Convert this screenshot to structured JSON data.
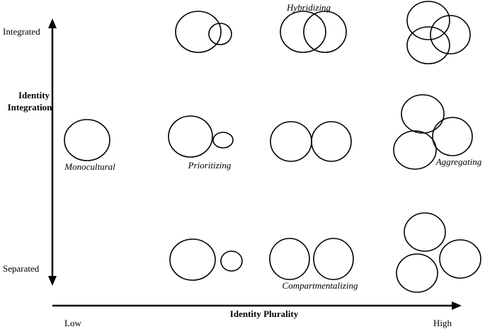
{
  "y_axis": {
    "title_line1": "Identity",
    "title_line2": "Integration",
    "top_label": "Integrated",
    "bottom_label": "Separated"
  },
  "x_axis": {
    "title": "Identity Plurality",
    "left_label": "Low",
    "right_label": "High"
  },
  "categories": {
    "monocultural": "Monocultural",
    "prioritizing": "Prioritizing",
    "hybridizing": "Hybridizing",
    "compartmentalizing": "Compartmentalizing",
    "aggregating": "Aggregating"
  }
}
